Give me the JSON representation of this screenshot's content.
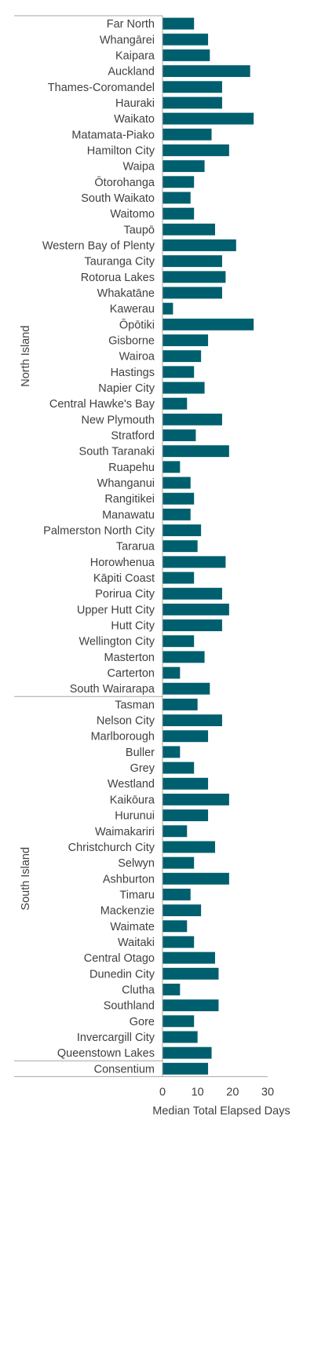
{
  "chart_data": {
    "type": "bar",
    "orientation": "horizontal",
    "title": "",
    "xlabel": "Median Total Elapsed Days",
    "ylabel": "",
    "xlim": [
      0,
      30
    ],
    "x_ticks": [
      0,
      10,
      20,
      30
    ],
    "grid": false,
    "legend": "none",
    "bar_color": "#005F6E",
    "groups": [
      {
        "name": "North Island",
        "items": [
          {
            "label": "Far North",
            "value": 9
          },
          {
            "label": "Whangārei",
            "value": 13
          },
          {
            "label": "Kaipara",
            "value": 13.5
          },
          {
            "label": "Auckland",
            "value": 25
          },
          {
            "label": "Thames-Coromandel",
            "value": 17
          },
          {
            "label": "Hauraki",
            "value": 17
          },
          {
            "label": "Waikato",
            "value": 26
          },
          {
            "label": "Matamata-Piako",
            "value": 14
          },
          {
            "label": "Hamilton City",
            "value": 19
          },
          {
            "label": "Waipa",
            "value": 12
          },
          {
            "label": "Ōtorohanga",
            "value": 9
          },
          {
            "label": "South Waikato",
            "value": 8
          },
          {
            "label": "Waitomo",
            "value": 9
          },
          {
            "label": "Taupō",
            "value": 15
          },
          {
            "label": "Western Bay of Plenty",
            "value": 21
          },
          {
            "label": "Tauranga City",
            "value": 17
          },
          {
            "label": "Rotorua Lakes",
            "value": 18
          },
          {
            "label": "Whakatāne",
            "value": 17
          },
          {
            "label": "Kawerau",
            "value": 3
          },
          {
            "label": "Ōpōtiki",
            "value": 26
          },
          {
            "label": "Gisborne",
            "value": 13
          },
          {
            "label": "Wairoa",
            "value": 11
          },
          {
            "label": "Hastings",
            "value": 9
          },
          {
            "label": "Napier City",
            "value": 12
          },
          {
            "label": "Central Hawke's Bay",
            "value": 7
          },
          {
            "label": "New Plymouth",
            "value": 17
          },
          {
            "label": "Stratford",
            "value": 9.5
          },
          {
            "label": "South Taranaki",
            "value": 19
          },
          {
            "label": "Ruapehu",
            "value": 5
          },
          {
            "label": "Whanganui",
            "value": 8
          },
          {
            "label": "Rangitikei",
            "value": 9
          },
          {
            "label": "Manawatu",
            "value": 8
          },
          {
            "label": "Palmerston North City",
            "value": 11
          },
          {
            "label": "Tararua",
            "value": 10
          },
          {
            "label": "Horowhenua",
            "value": 18
          },
          {
            "label": "Kāpiti Coast",
            "value": 9
          },
          {
            "label": "Porirua City",
            "value": 17
          },
          {
            "label": "Upper Hutt City",
            "value": 19
          },
          {
            "label": "Hutt City",
            "value": 17
          },
          {
            "label": "Wellington City",
            "value": 9
          },
          {
            "label": "Masterton",
            "value": 12
          },
          {
            "label": "Carterton",
            "value": 5
          },
          {
            "label": "South Wairarapa",
            "value": 13.5
          }
        ]
      },
      {
        "name": "South Island",
        "items": [
          {
            "label": "Tasman",
            "value": 10
          },
          {
            "label": "Nelson City",
            "value": 17
          },
          {
            "label": "Marlborough",
            "value": 13
          },
          {
            "label": "Buller",
            "value": 5
          },
          {
            "label": "Grey",
            "value": 9
          },
          {
            "label": "Westland",
            "value": 13
          },
          {
            "label": "Kaikōura",
            "value": 19
          },
          {
            "label": "Hurunui",
            "value": 13
          },
          {
            "label": "Waimakariri",
            "value": 7
          },
          {
            "label": "Christchurch City",
            "value": 15
          },
          {
            "label": "Selwyn",
            "value": 9
          },
          {
            "label": "Ashburton",
            "value": 19
          },
          {
            "label": "Timaru",
            "value": 8
          },
          {
            "label": "Mackenzie",
            "value": 11
          },
          {
            "label": "Waimate",
            "value": 7
          },
          {
            "label": "Waitaki",
            "value": 9
          },
          {
            "label": "Central Otago",
            "value": 15
          },
          {
            "label": "Dunedin City",
            "value": 16
          },
          {
            "label": "Clutha",
            "value": 5
          },
          {
            "label": "Southland",
            "value": 16
          },
          {
            "label": "Gore",
            "value": 9
          },
          {
            "label": "Invercargill City",
            "value": 10
          },
          {
            "label": "Queenstown Lakes",
            "value": 14
          }
        ]
      },
      {
        "name": "",
        "items": [
          {
            "label": "Consentium",
            "value": 13
          }
        ]
      }
    ]
  }
}
